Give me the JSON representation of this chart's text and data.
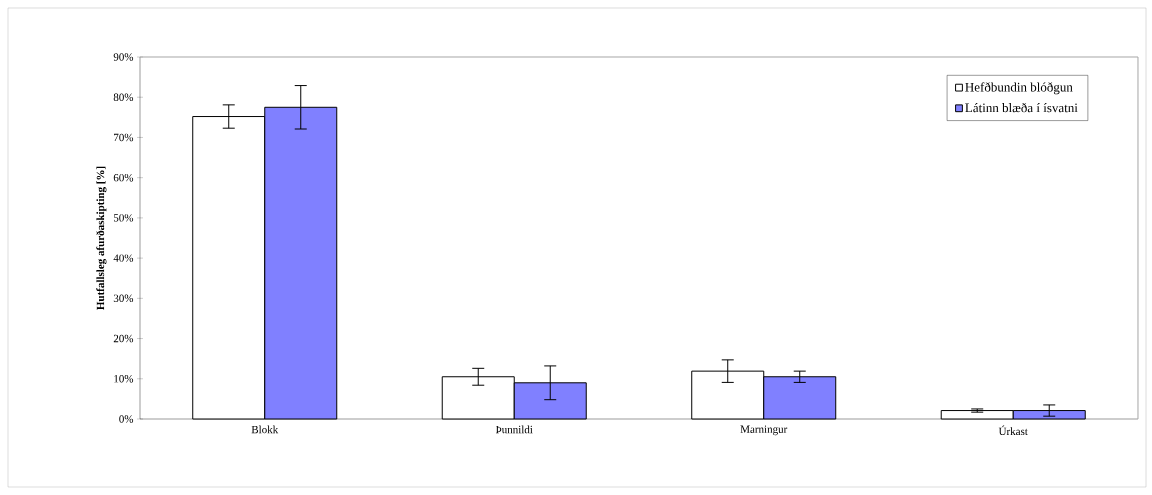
{
  "chart_data": {
    "type": "bar",
    "ylabel": "Hutfallsleg afurðaskipting [%]",
    "categories": [
      "Blokk",
      "Þunnildi",
      "Marningur",
      "Úrkast"
    ],
    "series": [
      {
        "name": "Hefðbundin blóðgun",
        "color": "#ffffff",
        "values": [
          75.2,
          10.5,
          11.9,
          2.1
        ],
        "errors": [
          2.9,
          2.1,
          2.8,
          0.4
        ]
      },
      {
        "name": "Látinn blæða í ísvatni",
        "color": "#8080ff",
        "values": [
          77.5,
          9.0,
          10.5,
          2.1
        ],
        "errors": [
          5.4,
          4.2,
          1.4,
          1.4
        ]
      }
    ],
    "ylim": [
      0,
      90
    ],
    "yticks": [
      {
        "value": 0,
        "label": "0%"
      },
      {
        "value": 10,
        "label": "10%"
      },
      {
        "value": 20,
        "label": "20%"
      },
      {
        "value": 30,
        "label": "30%"
      },
      {
        "value": 40,
        "label": "40%"
      },
      {
        "value": 50,
        "label": "50%"
      },
      {
        "value": 60,
        "label": "60%"
      },
      {
        "value": 70,
        "label": "70%"
      },
      {
        "value": 80,
        "label": "80%"
      },
      {
        "value": 90,
        "label": "90%"
      }
    ],
    "grid": false,
    "legend": "top right"
  }
}
